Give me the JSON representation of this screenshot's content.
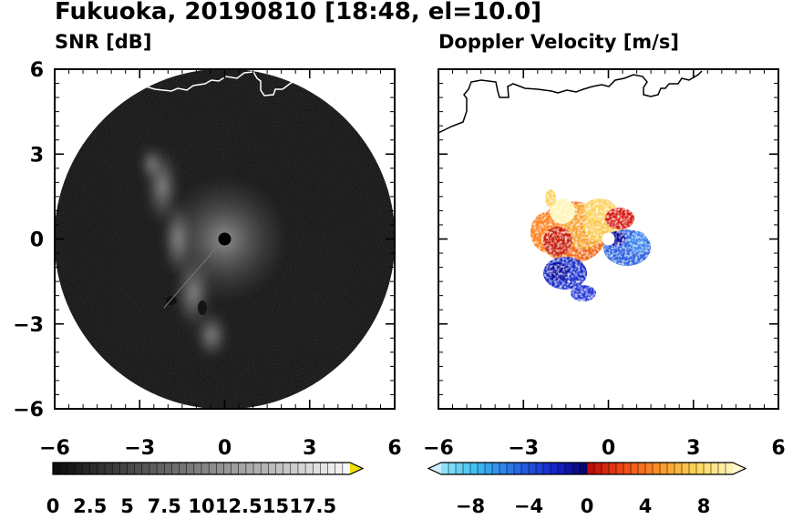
{
  "title": "Fukuoka, 20190810 [18:48, el=10.0]",
  "panels": [
    {
      "subtitle": "SNR [dB]"
    },
    {
      "subtitle": "Doppler Velocity [m/s]"
    }
  ],
  "chart_data": [
    {
      "type": "heatmap",
      "title": "SNR [dB]",
      "xlim": [
        -6,
        6
      ],
      "ylim": [
        -6,
        6
      ],
      "xticks": [
        "−6",
        "−3",
        "0",
        "3",
        "6"
      ],
      "yticks": [
        "6",
        "3",
        "0",
        "−3",
        "−6"
      ],
      "colormap": "grayscale",
      "colorbar": {
        "range": [
          0,
          20
        ],
        "ticks": [
          0,
          2.5,
          5,
          7.5,
          10,
          12.5,
          15,
          17.5
        ],
        "tick_labels": [
          "0",
          "2.5",
          "5",
          "7.5",
          "10",
          "12.5",
          "15",
          "17.5"
        ],
        "extend": "max",
        "over_color": "#f2e000"
      },
      "range_ring_radius": 6,
      "background_color": "#0c0c0c",
      "coastline_color": "#ffffff"
    },
    {
      "type": "heatmap",
      "title": "Doppler Velocity [m/s]",
      "xlim": [
        -6,
        6
      ],
      "ylim": [
        -6,
        6
      ],
      "xticks": [
        "−6",
        "−3",
        "0",
        "3",
        "6"
      ],
      "yticks": [
        "6",
        "3",
        "0",
        "−3",
        "−6"
      ],
      "colormap": "diverging blue-red",
      "colorbar": {
        "range": [
          -10,
          10
        ],
        "ticks": [
          -8,
          -4,
          0,
          4,
          8
        ],
        "tick_labels": [
          "−8",
          "−4",
          "0",
          "4",
          "8"
        ],
        "extend": "both",
        "under_color": "#cfeffc",
        "over_color": "#fffbd9"
      },
      "data_extent_km": 1.5,
      "coastline_color": "#000000"
    }
  ]
}
